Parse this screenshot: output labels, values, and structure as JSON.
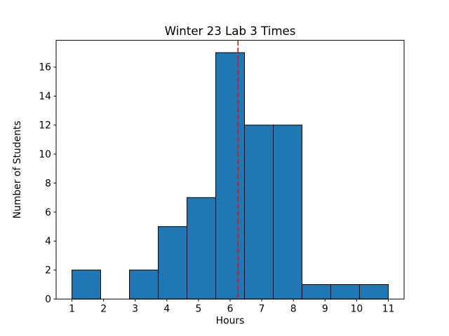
{
  "figure": {
    "background_color": "#ffffff"
  },
  "chart_data": {
    "type": "bar",
    "subtype": "histogram",
    "title": "Winter 23 Lab 3 Times",
    "xlabel": "Hours",
    "ylabel": "Number of Students",
    "bin_edges": [
      1.0,
      1.9091,
      2.8182,
      3.7273,
      4.6364,
      5.5455,
      6.4545,
      7.3636,
      8.2727,
      9.1818,
      10.0909,
      11.0
    ],
    "counts": [
      2,
      0,
      2,
      5,
      7,
      17,
      12,
      12,
      1,
      1,
      1
    ],
    "xticks": [
      1,
      2,
      3,
      4,
      5,
      6,
      7,
      8,
      9,
      10,
      11
    ],
    "yticks": [
      0,
      2,
      4,
      6,
      8,
      10,
      12,
      14,
      16
    ],
    "xlim": [
      0.5,
      11.5
    ],
    "ylim": [
      0,
      17.85
    ],
    "grid": false,
    "legend": "none",
    "bar_color": "#1f77b4",
    "bar_edge_color": "#000000",
    "axis_color": "#000000",
    "vline": {
      "x": 6.25,
      "color": "#ff0000",
      "style": "dashed",
      "linewidth": 1.5
    }
  }
}
